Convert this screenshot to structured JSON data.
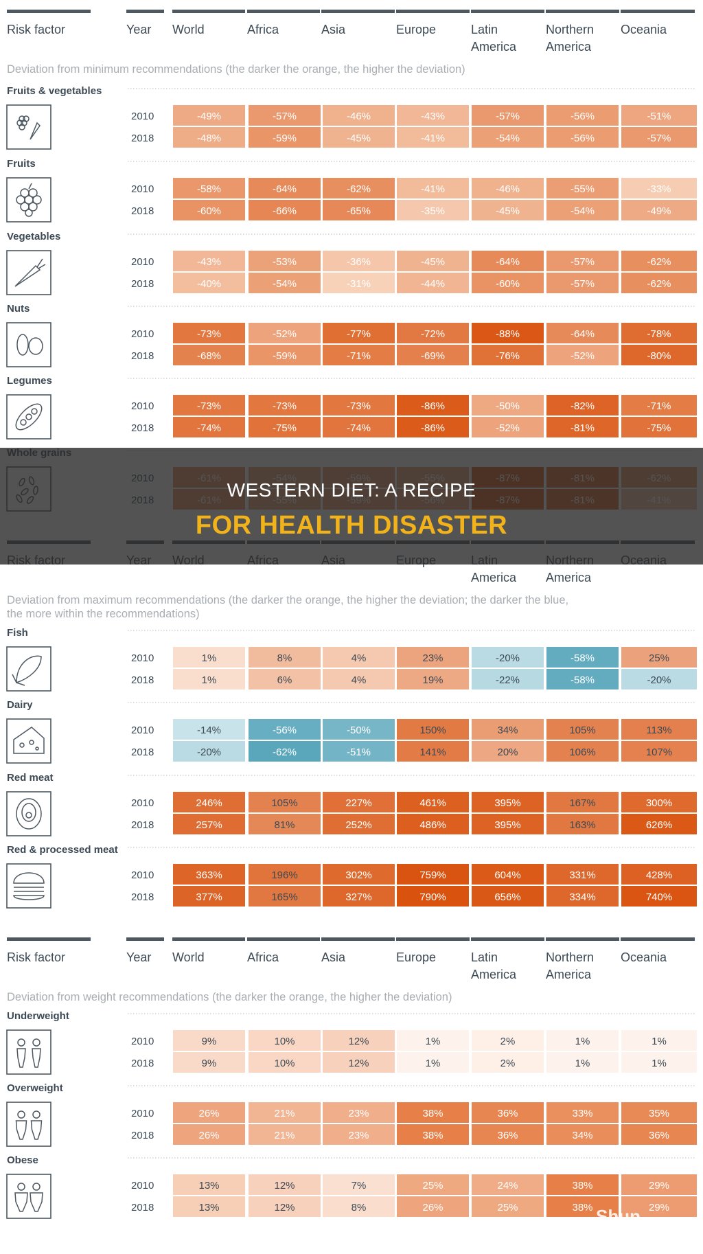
{
  "banner": {
    "line1": "WESTERN DIET: A RECIPE",
    "line2": "FOR HEALTH DISASTER"
  },
  "watermark": "Shun",
  "colors": {
    "orange_dark": "#d9530f",
    "orange_light": "#fdeee3",
    "blue_dark": "#5aa7bc",
    "blue_light": "#e9f4f7",
    "header_rule": "#4d5861",
    "text": "#3d4a55"
  },
  "chart_data": {
    "type": "table",
    "headers": [
      "Risk factor",
      "Year",
      "World",
      "Africa",
      "Asia",
      "Europe",
      "Latin\nAmerica",
      "Northern\nAmerica",
      "Oceania"
    ],
    "sections": [
      {
        "subtitle": "Deviation from minimum recommendations (the darker the orange, the higher the deviation)",
        "factors": [
          {
            "name": "Fruits & vegetables",
            "icon": "fruits-vegetables-icon",
            "rows": [
              {
                "year": "2010",
                "values": [
                  -49,
                  -57,
                  -46,
                  -43,
                  -57,
                  -56,
                  -51
                ]
              },
              {
                "year": "2018",
                "values": [
                  -48,
                  -59,
                  -45,
                  -41,
                  -54,
                  -56,
                  -57
                ]
              }
            ]
          },
          {
            "name": "Fruits",
            "icon": "grapes-icon",
            "rows": [
              {
                "year": "2010",
                "values": [
                  -58,
                  -64,
                  -62,
                  -41,
                  -46,
                  -55,
                  -33
                ]
              },
              {
                "year": "2018",
                "values": [
                  -60,
                  -66,
                  -65,
                  -35,
                  -45,
                  -54,
                  -49
                ]
              }
            ]
          },
          {
            "name": "Vegetables",
            "icon": "carrot-icon",
            "rows": [
              {
                "year": "2010",
                "values": [
                  -43,
                  -53,
                  -36,
                  -45,
                  -64,
                  -57,
                  -62
                ]
              },
              {
                "year": "2018",
                "values": [
                  -40,
                  -54,
                  -31,
                  -44,
                  -60,
                  -57,
                  -62
                ]
              }
            ]
          },
          {
            "name": "Nuts",
            "icon": "nuts-icon",
            "rows": [
              {
                "year": "2010",
                "values": [
                  -73,
                  -52,
                  -77,
                  -72,
                  -88,
                  -64,
                  -78
                ]
              },
              {
                "year": "2018",
                "values": [
                  -68,
                  -59,
                  -71,
                  -69,
                  -76,
                  -52,
                  -80
                ]
              }
            ]
          },
          {
            "name": "Legumes",
            "icon": "legumes-icon",
            "rows": [
              {
                "year": "2010",
                "values": [
                  -73,
                  -73,
                  -73,
                  -86,
                  -50,
                  -82,
                  -71
                ]
              },
              {
                "year": "2018",
                "values": [
                  -74,
                  -75,
                  -74,
                  -86,
                  -52,
                  -81,
                  -75
                ]
              }
            ]
          },
          {
            "name": "Whole grains",
            "icon": "grains-icon",
            "rows": [
              {
                "year": "2010",
                "values": [
                  -61,
                  -54,
                  -59,
                  -55,
                  -87,
                  -81,
                  -62
                ]
              },
              {
                "year": "2018",
                "values": [
                  -61,
                  -55,
                  -59,
                  -56,
                  -87,
                  -81,
                  -41
                ]
              }
            ]
          }
        ]
      },
      {
        "subtitle": "Deviation from maximum recommendations (the darker the orange, the higher the deviation; the darker the blue, the more within the recommendations)",
        "factors": [
          {
            "name": "Fish",
            "icon": "fish-icon",
            "rows": [
              {
                "year": "2010",
                "values": [
                  1,
                  8,
                  4,
                  23,
                  -20,
                  -58,
                  25
                ]
              },
              {
                "year": "2018",
                "values": [
                  1,
                  6,
                  4,
                  19,
                  -22,
                  -58,
                  -20
                ]
              }
            ]
          },
          {
            "name": "Dairy",
            "icon": "cheese-icon",
            "rows": [
              {
                "year": "2010",
                "values": [
                  -14,
                  -56,
                  -50,
                  150,
                  34,
                  105,
                  113
                ]
              },
              {
                "year": "2018",
                "values": [
                  -20,
                  -62,
                  -51,
                  141,
                  20,
                  106,
                  107
                ]
              }
            ]
          },
          {
            "name": "Red meat",
            "icon": "steak-icon",
            "rows": [
              {
                "year": "2010",
                "values": [
                  246,
                  105,
                  227,
                  461,
                  395,
                  167,
                  300
                ]
              },
              {
                "year": "2018",
                "values": [
                  257,
                  81,
                  252,
                  486,
                  395,
                  163,
                  626
                ]
              }
            ]
          },
          {
            "name": "Red & processed meat",
            "icon": "burger-icon",
            "rows": [
              {
                "year": "2010",
                "values": [
                  363,
                  196,
                  302,
                  759,
                  604,
                  331,
                  428
                ]
              },
              {
                "year": "2018",
                "values": [
                  377,
                  165,
                  327,
                  790,
                  656,
                  334,
                  740
                ]
              }
            ]
          }
        ]
      },
      {
        "subtitle": "Deviation from weight recommendations (the darker the orange, the higher the deviation)",
        "factors": [
          {
            "name": "Underweight",
            "icon": "underweight-icon",
            "rows": [
              {
                "year": "2010",
                "values": [
                  9,
                  10,
                  12,
                  1,
                  2,
                  1,
                  1
                ]
              },
              {
                "year": "2018",
                "values": [
                  9,
                  10,
                  12,
                  1,
                  2,
                  1,
                  1
                ]
              }
            ]
          },
          {
            "name": "Overweight",
            "icon": "overweight-icon",
            "rows": [
              {
                "year": "2010",
                "values": [
                  26,
                  21,
                  23,
                  38,
                  36,
                  33,
                  35
                ]
              },
              {
                "year": "2018",
                "values": [
                  26,
                  21,
                  23,
                  38,
                  36,
                  34,
                  36
                ]
              }
            ]
          },
          {
            "name": "Obese",
            "icon": "obese-icon",
            "rows": [
              {
                "year": "2010",
                "values": [
                  13,
                  12,
                  7,
                  25,
                  24,
                  38,
                  29
                ]
              },
              {
                "year": "2018",
                "values": [
                  13,
                  12,
                  8,
                  26,
                  25,
                  38,
                  29
                ]
              }
            ]
          }
        ]
      }
    ]
  }
}
